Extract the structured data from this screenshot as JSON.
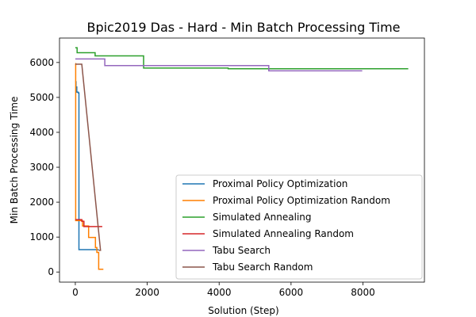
{
  "chart_data": {
    "type": "line",
    "title": "Bpic2019 Das - Hard - Min Batch Processing Time",
    "xlabel": "Solution (Step)",
    "ylabel": "Min Batch Processing Time",
    "xlim": [
      -440,
      9710
    ],
    "ylim": [
      -290,
      6700
    ],
    "x_ticks": [
      0,
      2000,
      4000,
      6000,
      8000
    ],
    "y_ticks": [
      0,
      1000,
      2000,
      3000,
      4000,
      5000,
      6000
    ],
    "grid": false,
    "legend_position": "lower-right",
    "series": [
      {
        "name": "Proximal Policy Optimization",
        "color": "#1f77b4",
        "points": [
          [
            0,
            5450
          ],
          [
            20,
            5450
          ],
          [
            20,
            5300
          ],
          [
            40,
            5300
          ],
          [
            40,
            5150
          ],
          [
            80,
            5150
          ],
          [
            80,
            5130
          ],
          [
            100,
            5130
          ],
          [
            100,
            640
          ],
          [
            650,
            640
          ]
        ]
      },
      {
        "name": "Proximal Policy Optimization Random",
        "color": "#ff7f00",
        "points": [
          [
            0,
            5970
          ],
          [
            10,
            5970
          ],
          [
            10,
            1470
          ],
          [
            200,
            1470
          ],
          [
            200,
            1320
          ],
          [
            370,
            1320
          ],
          [
            370,
            990
          ],
          [
            560,
            990
          ],
          [
            560,
            700
          ],
          [
            600,
            700
          ],
          [
            600,
            560
          ],
          [
            650,
            560
          ],
          [
            650,
            80
          ],
          [
            780,
            80
          ]
        ]
      },
      {
        "name": "Simulated Annealing",
        "color": "#2ca02c",
        "points": [
          [
            0,
            6420
          ],
          [
            50,
            6420
          ],
          [
            50,
            6280
          ],
          [
            550,
            6280
          ],
          [
            550,
            6190
          ],
          [
            1900,
            6190
          ],
          [
            1900,
            5840
          ],
          [
            4250,
            5840
          ],
          [
            4250,
            5820
          ],
          [
            9260,
            5820
          ]
        ]
      },
      {
        "name": "Simulated Annealing Random",
        "color": "#d62728",
        "points": [
          [
            0,
            1500
          ],
          [
            180,
            1500
          ],
          [
            180,
            1450
          ],
          [
            240,
            1450
          ],
          [
            240,
            1300
          ],
          [
            750,
            1300
          ]
        ]
      },
      {
        "name": "Tabu Search",
        "color": "#9467bd",
        "points": [
          [
            0,
            6100
          ],
          [
            820,
            6100
          ],
          [
            820,
            5910
          ],
          [
            5380,
            5910
          ],
          [
            5380,
            5760
          ],
          [
            7980,
            5760
          ]
        ]
      },
      {
        "name": "Tabu Search Random",
        "color": "#8c564b",
        "points": [
          [
            0,
            5950
          ],
          [
            180,
            5950
          ],
          [
            700,
            620
          ],
          [
            650,
            620
          ]
        ]
      }
    ]
  }
}
